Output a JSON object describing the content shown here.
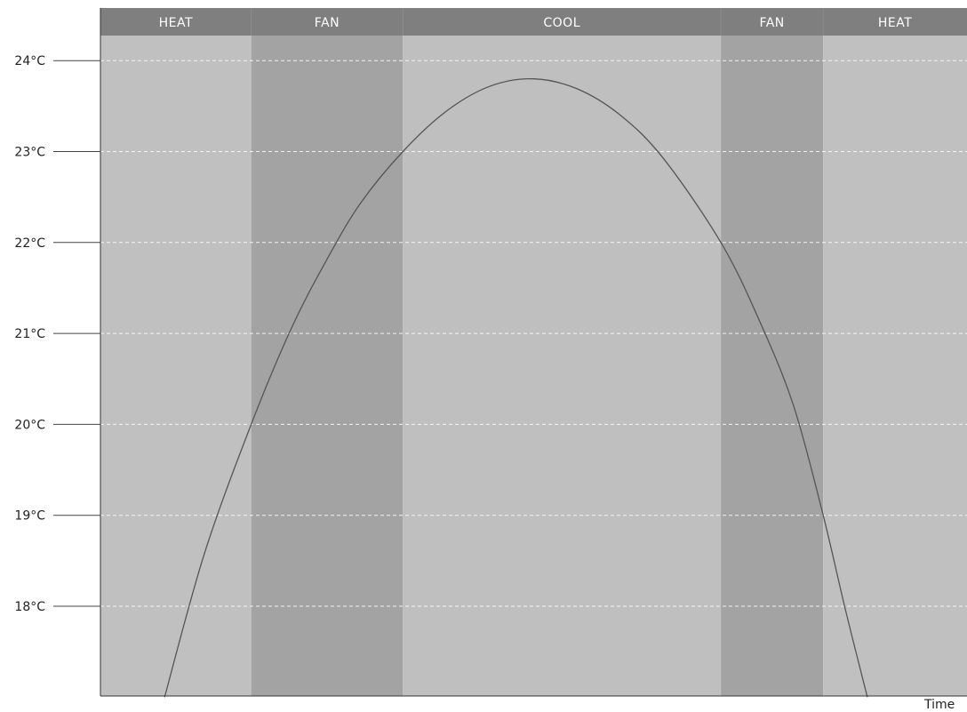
{
  "chart_data": {
    "type": "line",
    "title": "",
    "xlabel": "Time",
    "ylabel": "",
    "y_unit": "°C",
    "ylim": [
      17,
      24.2
    ],
    "xlim": [
      0,
      100
    ],
    "grid": true,
    "y_ticks": [
      {
        "value": 24,
        "label": "24°C"
      },
      {
        "value": 23,
        "label": "23°C"
      },
      {
        "value": 22,
        "label": "22°C"
      },
      {
        "value": 21,
        "label": "21°C"
      },
      {
        "value": 20,
        "label": "20°C"
      },
      {
        "value": 19,
        "label": "19°C"
      },
      {
        "value": 18,
        "label": "18°C"
      }
    ],
    "bands": [
      {
        "label": "HEAT",
        "start": 0,
        "end": 17.4,
        "mode": "heat"
      },
      {
        "label": "FAN",
        "start": 17.4,
        "end": 34.9,
        "mode": "fan"
      },
      {
        "label": "COOL",
        "start": 34.9,
        "end": 71.6,
        "mode": "cool"
      },
      {
        "label": "FAN",
        "start": 71.6,
        "end": 83.4,
        "mode": "fan"
      },
      {
        "label": "HEAT",
        "start": 83.4,
        "end": 100,
        "mode": "heat"
      }
    ],
    "series": [
      {
        "x": [
          7.4,
          12,
          17.4,
          22,
          26,
          30,
          34.9,
          40,
          45,
          50,
          55,
          60,
          65,
          71.6,
          76,
          80,
          83.4,
          86,
          88.5
        ],
        "y": [
          17,
          18.58,
          20.0,
          21.05,
          21.79,
          22.43,
          23.0,
          23.45,
          23.72,
          23.8,
          23.69,
          23.4,
          22.92,
          22.0,
          21.15,
          20.2,
          19.0,
          17.95,
          17.0
        ]
      }
    ],
    "colors": {
      "heat": "#c0c0c0",
      "fan": "#a3a3a3",
      "cool": "#bfbfbf",
      "header": "#7f7f7f",
      "line": "#555555",
      "grid": "#ffffff"
    }
  }
}
